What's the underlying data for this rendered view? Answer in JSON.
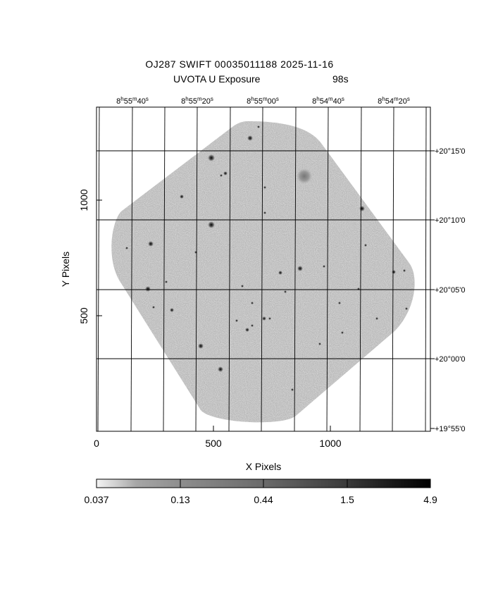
{
  "title": {
    "line1": "OJ287 SWIFT 00035011188 2025-11-16",
    "line2_label": "UVOTA U Exposure",
    "line2_value": "98s"
  },
  "axes": {
    "xlabel": "X Pixels",
    "ylabel": "Y Pixels",
    "x_ticks": [
      "0",
      "500",
      "1000"
    ],
    "y_ticks": [
      "500",
      "1000"
    ],
    "ra_ticks": [
      {
        "h": "8",
        "m": "55",
        "s": "40"
      },
      {
        "h": "8",
        "m": "55",
        "s": "20"
      },
      {
        "h": "8",
        "m": "55",
        "s": "00"
      },
      {
        "h": "8",
        "m": "54",
        "s": "40"
      },
      {
        "h": "8",
        "m": "54",
        "s": "20"
      }
    ],
    "dec_ticks": [
      "+20°15'0",
      "+20°10'0",
      "+20°05'0",
      "+20°00'0",
      "+19°55'0"
    ]
  },
  "colorbar": {
    "labels": [
      "0.037",
      "0.13",
      "0.44",
      "1.5",
      "4.9"
    ]
  },
  "colors": {
    "frame": "#000000",
    "field": "#b4b4b4",
    "background": "#ffffff"
  }
}
